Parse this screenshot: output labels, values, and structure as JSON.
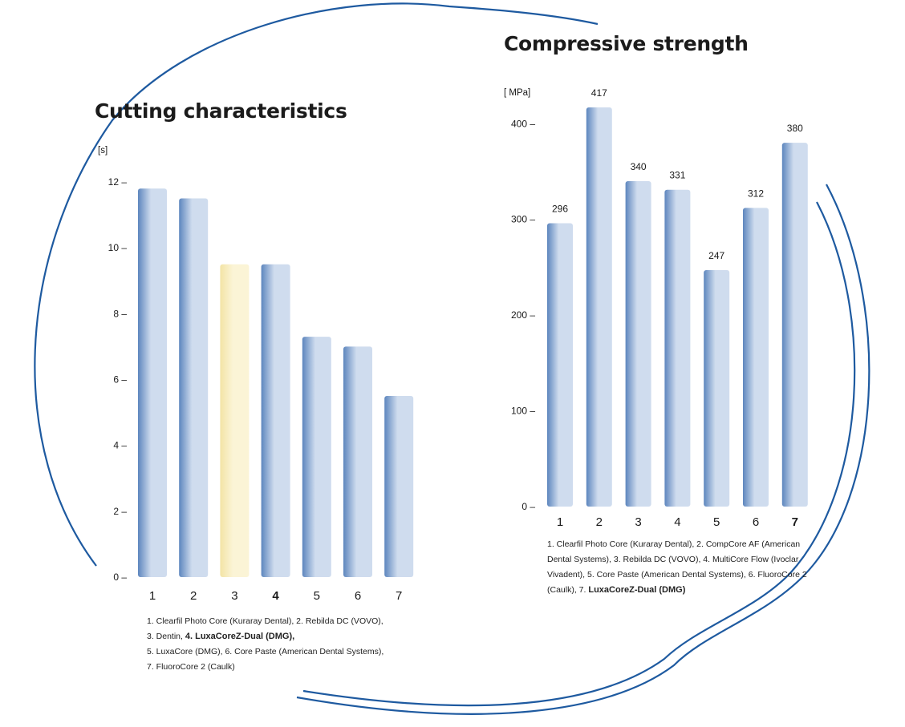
{
  "colors": {
    "ring": "#1e5aa0",
    "bar_light": "#cfdcee",
    "bar_dark": "#5d86be",
    "bar_highlight_light": "#fbf4d6",
    "bar_highlight_dark": "#f3e4a6",
    "axis_text": "#1a1a1a"
  },
  "chart_data": [
    {
      "type": "bar",
      "title": "Cutting characteristics",
      "ylabel": "[s]",
      "xlabel": "",
      "categories": [
        "1",
        "2",
        "3",
        "4",
        "5",
        "6",
        "7"
      ],
      "values": [
        11.8,
        11.5,
        9.5,
        9.5,
        7.3,
        7.0,
        5.5
      ],
      "highlight_index": 2,
      "bold_index": 3,
      "ylim": [
        0,
        12
      ],
      "yticks": [
        0,
        2,
        4,
        6,
        8,
        10,
        12
      ],
      "ytick_labels": [
        "0 –",
        "2 –",
        "4 –",
        "6 –",
        "8 –",
        "10 –",
        "12 –"
      ],
      "value_labels": [],
      "grid": false,
      "legend": "none",
      "caption_parts": [
        {
          "text": "1. Clearfil Photo Core (Kuraray Dental), 2. Rebilda DC (VOVO),",
          "bold": false
        },
        {
          "text": "3. Dentin, ",
          "bold": false
        },
        {
          "text": "4. LuxaCoreZ-Dual (DMG),",
          "bold": true
        },
        {
          "text": "5. LuxaCore (DMG), 6. Core Paste (American Dental Systems),",
          "bold": false
        },
        {
          "text": "7. FluoroCore 2 (Caulk)",
          "bold": false
        }
      ]
    },
    {
      "type": "bar",
      "title": "Compressive strength",
      "ylabel": "[ MPa]",
      "xlabel": "",
      "categories": [
        "1",
        "2",
        "3",
        "4",
        "5",
        "6",
        "7"
      ],
      "values": [
        296,
        417,
        340,
        331,
        247,
        312,
        380
      ],
      "value_labels": [
        "296",
        "417",
        "340",
        "331",
        "247",
        "312",
        "380"
      ],
      "bold_index": 6,
      "ylim": [
        0,
        417
      ],
      "yticks": [
        0,
        100,
        200,
        300,
        400
      ],
      "ytick_labels": [
        "0 –",
        "100 –",
        "200 –",
        "300 –",
        "400 –"
      ],
      "grid": false,
      "legend": "none",
      "caption_parts": [
        {
          "text": "1. Clearfil Photo Core (Kuraray Dental), 2. CompCore AF (American",
          "bold": false
        },
        {
          "text": "Dental Systems), 3. Rebilda DC (VOVO), 4. MultiCore Flow (Ivoclar",
          "bold": false
        },
        {
          "text": "Vivadent), 5. Core Paste (American Dental Systems), 6. FluoroCore 2",
          "bold": false
        },
        {
          "text": "(Caulk), 7. ",
          "bold": false
        },
        {
          "text": "LuxaCoreZ-Dual (DMG)",
          "bold": true
        }
      ]
    }
  ]
}
